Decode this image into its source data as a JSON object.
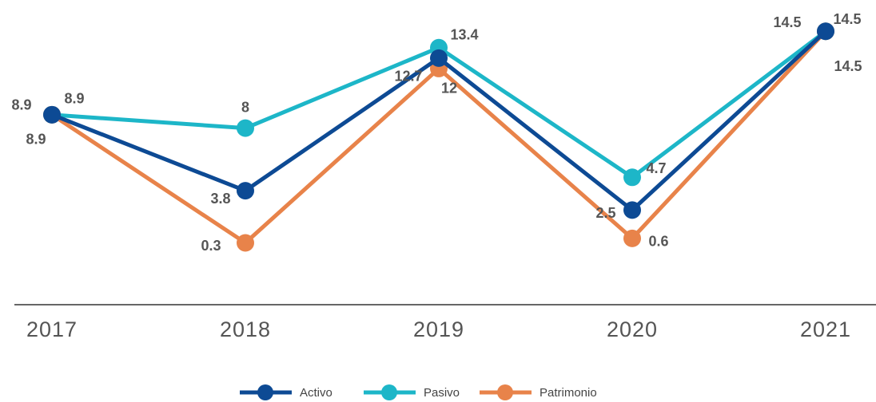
{
  "chart_data": {
    "type": "line",
    "categories": [
      "2017",
      "2018",
      "2019",
      "2020",
      "2021"
    ],
    "series": [
      {
        "name": "Activo",
        "color": "#0d4a94",
        "values": [
          8.9,
          3.8,
          12.7,
          2.5,
          14.5
        ]
      },
      {
        "name": "Pasivo",
        "color": "#1db6c8",
        "values": [
          8.9,
          8,
          13.4,
          4.7,
          14.5
        ]
      },
      {
        "name": "Patrimonio",
        "color": "#e8834a",
        "values": [
          8.9,
          0.3,
          12,
          0.6,
          14.5
        ]
      }
    ],
    "ylim": [
      -3.85,
      16.6
    ],
    "grid": false,
    "legend": "bottom"
  }
}
